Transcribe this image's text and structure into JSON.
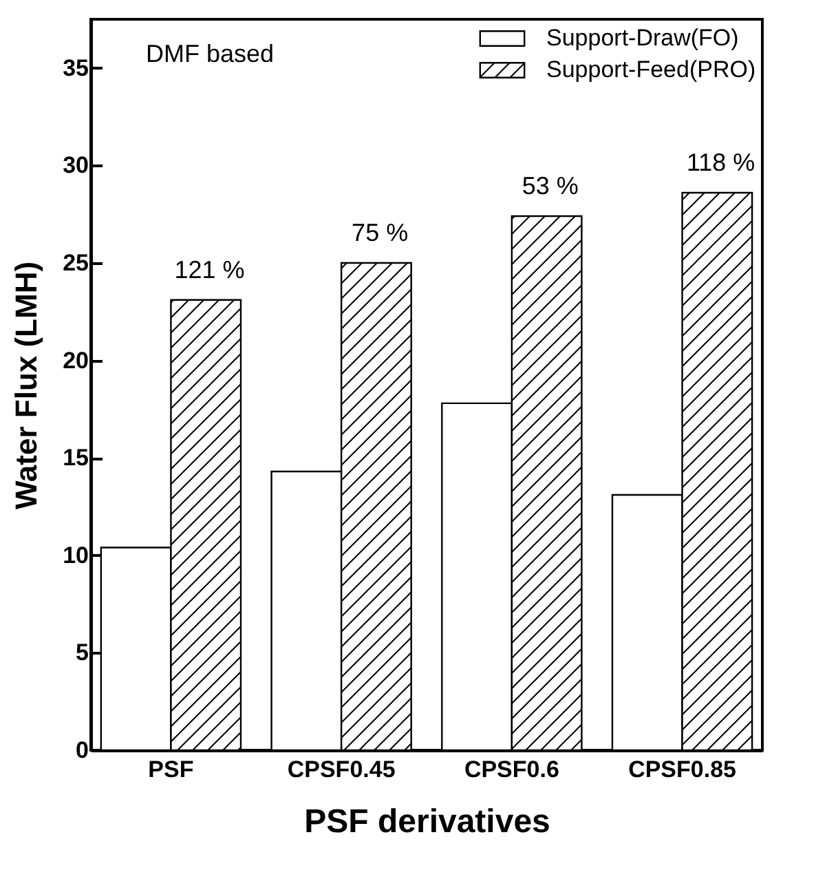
{
  "chart_data": {
    "type": "bar",
    "xlabel": "PSF derivatives",
    "ylabel": "Water Flux (LMH)",
    "categories": [
      "PSF",
      "CPSF0.45",
      "CPSF0.6",
      "CPSF0.85"
    ],
    "series": [
      {
        "name": "Support-Draw(FO)",
        "color": "#ffffff",
        "values": [
          10.4,
          14.3,
          17.8,
          13.1
        ]
      },
      {
        "name": "Support-Feed(PRO)",
        "color": "#000000",
        "values": [
          23.1,
          25.0,
          27.4,
          28.6
        ]
      }
    ],
    "ylim": [
      0,
      37.5
    ],
    "yticks": [
      0,
      5,
      10,
      15,
      20,
      25,
      30,
      35
    ],
    "grid": false,
    "legend": "top right",
    "annotations": [
      "DMF based",
      {
        "text": "121 %",
        "x": "PSF",
        "y": 23.1
      },
      {
        "text": "75 %",
        "x": "CPSF0.45",
        "y": 25.0
      },
      {
        "text": "53 %",
        "x": "CPSF0.6",
        "y": 27.4
      },
      {
        "text": "118 %",
        "x": "CPSF0.85",
        "y": 28.6
      }
    ]
  }
}
